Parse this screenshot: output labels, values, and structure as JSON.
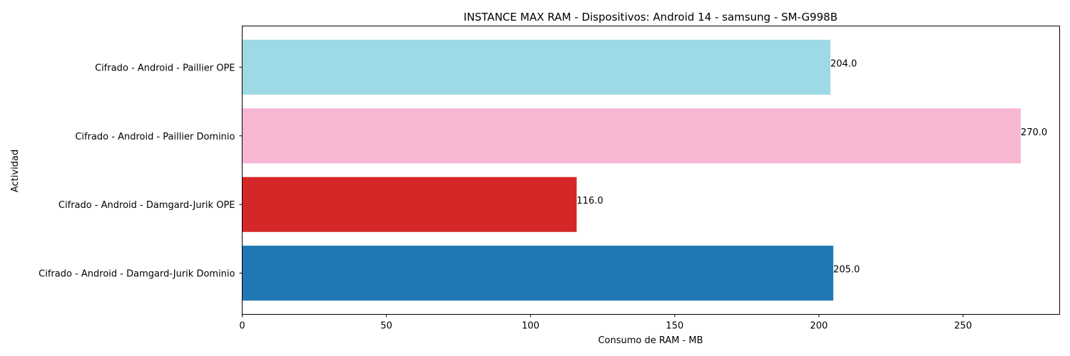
{
  "chart_data": {
    "type": "bar",
    "orientation": "horizontal",
    "title": "INSTANCE MAX RAM - Dispositivos: Android 14 - samsung - SM-G998B",
    "xlabel": "Consumo de RAM - MB",
    "ylabel": "Actividad",
    "xlim": [
      0,
      283.5
    ],
    "xticks": [
      0,
      50,
      100,
      150,
      200,
      250
    ],
    "grid": false,
    "legend": "none",
    "categories": [
      "Cifrado - Android - Damgard-Jurik Dominio",
      "Cifrado - Android - Damgard-Jurik OPE",
      "Cifrado - Android - Paillier Dominio",
      "Cifrado - Android - Paillier OPE"
    ],
    "values": [
      205.0,
      116.0,
      270.0,
      204.0
    ],
    "value_labels": [
      "205.0",
      "116.0",
      "270.0",
      "204.0"
    ],
    "colors": [
      "#1f77b4",
      "#d62728",
      "#f7b6d2",
      "#9edae5"
    ]
  }
}
